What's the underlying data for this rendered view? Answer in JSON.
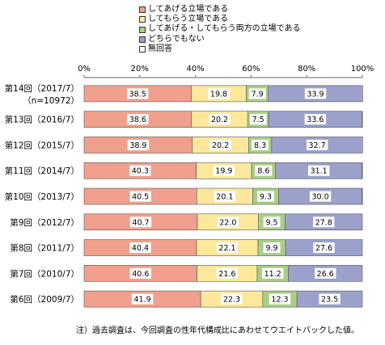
{
  "legend": [
    {
      "label": "してあげる立場である",
      "color": "#f0a08c"
    },
    {
      "label": "してもらう立場である",
      "color": "#fbe89a"
    },
    {
      "label": "してあげる・してもらう両方の立場である",
      "color": "#a9cf86"
    },
    {
      "label": "どちらでもない",
      "color": "#9ba1cb"
    },
    {
      "label": "無回答",
      "color": "#ffffff"
    }
  ],
  "note": "注）過去調査は、今回調査の性年代構成比にあわせてウエイトバックした値。",
  "chart_data": {
    "type": "stacked-bar-horizontal",
    "xlim": [
      0,
      100
    ],
    "xticks": [
      "0%",
      "20%",
      "40%",
      "60%",
      "80%",
      "100%"
    ],
    "grid": false,
    "legend_position": "top",
    "categories": [
      [
        "第14回（2017/7）",
        "（n=10972）"
      ],
      [
        "第13回（2016/7）"
      ],
      [
        "第12回（2015/7）"
      ],
      [
        "第11回（2014/7）"
      ],
      [
        "第10回（2013/7）"
      ],
      [
        "第9回（2012/7）"
      ],
      [
        "第8回（2011/7）"
      ],
      [
        "第7回（2010/7）"
      ],
      [
        "第6回（2009/7）"
      ]
    ],
    "series": [
      {
        "name": "してあげる立場である",
        "values": [
          38.5,
          38.6,
          38.9,
          40.3,
          40.5,
          40.7,
          40.4,
          40.6,
          41.9
        ],
        "labels": [
          "38.5",
          "38.6",
          "38.9",
          "40.3",
          "40.5",
          "40.7",
          "40.4",
          "40.6",
          "41.9"
        ]
      },
      {
        "name": "してもらう立場である",
        "values": [
          19.8,
          20.2,
          20.2,
          19.9,
          20.1,
          22.0,
          22.1,
          21.6,
          22.3
        ],
        "labels": [
          "19.8",
          "20.2",
          "20.2",
          "19.9",
          "20.1",
          "22.0",
          "22.1",
          "21.6",
          "22.3"
        ]
      },
      {
        "name": "してあげる・してもらう両方の立場である",
        "values": [
          7.9,
          7.5,
          8.3,
          8.6,
          9.3,
          9.5,
          9.9,
          11.2,
          12.3
        ],
        "labels": [
          "7.9",
          "7.5",
          "8.3",
          "8.6",
          "9.3",
          "9.5",
          "9.9",
          "11.2",
          "12.3"
        ]
      },
      {
        "name": "どちらでもない",
        "values": [
          33.9,
          33.6,
          32.7,
          31.1,
          30.0,
          27.8,
          27.6,
          26.6,
          23.5
        ],
        "labels": [
          "33.9",
          "33.6",
          "32.7",
          "31.1",
          "30.0",
          "27.8",
          "27.6",
          "26.6",
          "23.5"
        ]
      },
      {
        "name": "無回答",
        "values": [
          0.0,
          0.1,
          0.0,
          0.1,
          0.1,
          0.0,
          0.0,
          0.0,
          0.0
        ],
        "labels": []
      }
    ]
  }
}
